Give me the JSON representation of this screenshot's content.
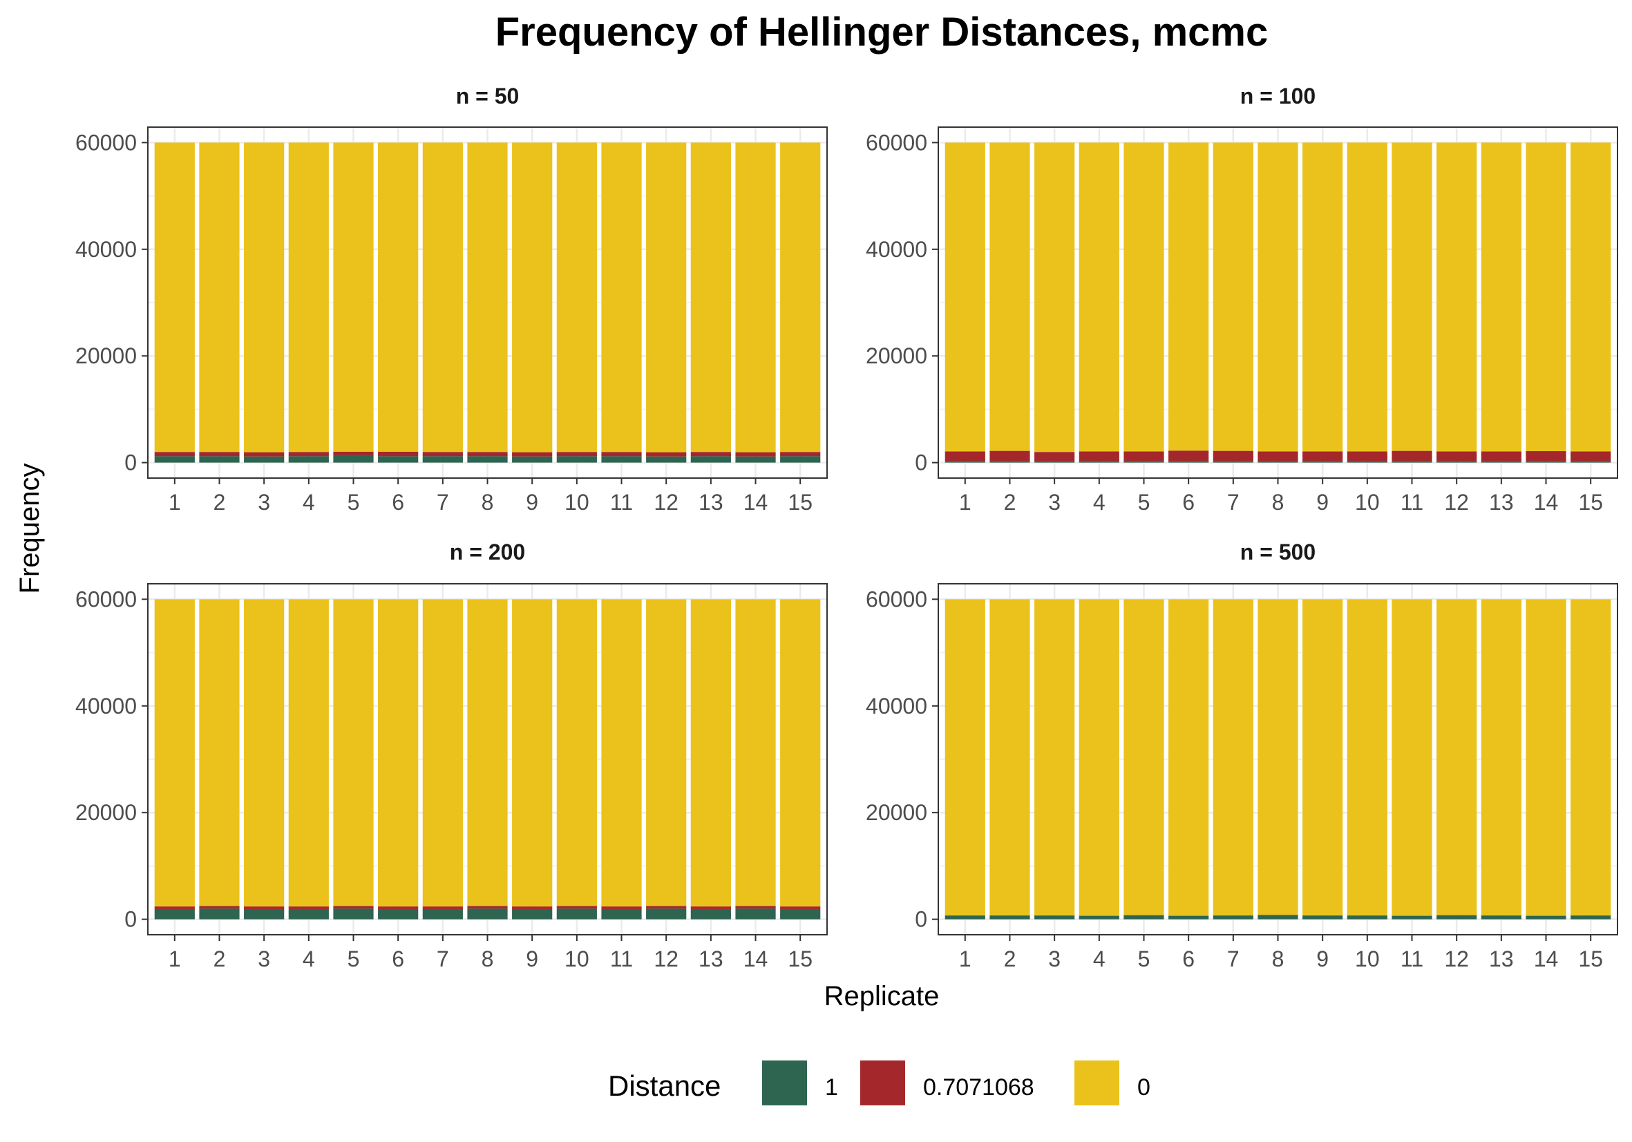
{
  "chart_data": {
    "type": "bar",
    "stacked": true,
    "title": "Frequency of Hellinger Distances, mcmc",
    "xlabel": "Replicate",
    "ylabel": "Frequency",
    "categories": [
      "1",
      "2",
      "3",
      "4",
      "5",
      "6",
      "7",
      "8",
      "9",
      "10",
      "11",
      "12",
      "13",
      "14",
      "15"
    ],
    "ylim": [
      -2900,
      62900
    ],
    "yticks": [
      0,
      20000,
      40000,
      60000
    ],
    "grid": true,
    "legend": {
      "title": "Distance",
      "position": "bottom",
      "entries": [
        {
          "label": "1",
          "color": "#2e6551"
        },
        {
          "label": "0.7071068",
          "color": "#a4282b"
        },
        {
          "label": "0",
          "color": "#ebc21b"
        }
      ]
    },
    "panels": [
      {
        "label": "n = 50",
        "series": [
          {
            "name": "1",
            "values": [
              1200,
              1200,
              1150,
              1200,
              1250,
              1200,
              1200,
              1200,
              1150,
              1200,
              1200,
              1150,
              1200,
              1150,
              1200
            ]
          },
          {
            "name": "0.7071068",
            "values": [
              800,
              800,
              800,
              800,
              800,
              850,
              800,
              800,
              800,
              800,
              800,
              800,
              800,
              800,
              800
            ]
          },
          {
            "name": "0",
            "values": [
              58000,
              58000,
              58050,
              58000,
              57950,
              57950,
              58000,
              58000,
              58050,
              58000,
              58000,
              58050,
              58000,
              58050,
              58000
            ]
          }
        ]
      },
      {
        "label": "n = 100",
        "series": [
          {
            "name": "1",
            "values": [
              300,
              300,
              250,
              300,
              300,
              300,
              300,
              250,
              300,
              250,
              300,
              300,
              250,
              300,
              300
            ]
          },
          {
            "name": "0.7071068",
            "values": [
              1800,
              1900,
              1750,
              1800,
              1800,
              1950,
              1900,
              1850,
              1800,
              1850,
              1900,
              1800,
              1850,
              1850,
              1800
            ]
          },
          {
            "name": "0",
            "values": [
              57900,
              57800,
              58000,
              57900,
              57900,
              57750,
              57800,
              57900,
              57900,
              57900,
              57800,
              57900,
              57900,
              57850,
              57900
            ]
          }
        ]
      },
      {
        "label": "n = 200",
        "series": [
          {
            "name": "1",
            "values": [
              1900,
              2000,
              1900,
              1900,
              2000,
              1900,
              1900,
              2000,
              1900,
              2000,
              1900,
              2000,
              1900,
              2000,
              1900
            ]
          },
          {
            "name": "0.7071068",
            "values": [
              500,
              500,
              500,
              500,
              500,
              500,
              500,
              500,
              500,
              500,
              500,
              500,
              500,
              500,
              500
            ]
          },
          {
            "name": "0",
            "values": [
              57600,
              57500,
              57600,
              57600,
              57500,
              57600,
              57600,
              57500,
              57600,
              57500,
              57600,
              57500,
              57600,
              57500,
              57600
            ]
          }
        ]
      },
      {
        "label": "n = 500",
        "series": [
          {
            "name": "1",
            "values": [
              700,
              700,
              700,
              650,
              750,
              650,
              700,
              800,
              700,
              700,
              650,
              750,
              700,
              650,
              700
            ]
          },
          {
            "name": "0.7071068",
            "values": [
              30,
              30,
              30,
              30,
              30,
              30,
              30,
              30,
              30,
              30,
              30,
              30,
              30,
              30,
              30
            ]
          },
          {
            "name": "0",
            "values": [
              59270,
              59270,
              59270,
              59320,
              59220,
              59320,
              59270,
              59170,
              59270,
              59270,
              59320,
              59220,
              59270,
              59320,
              59270
            ]
          }
        ]
      }
    ]
  }
}
